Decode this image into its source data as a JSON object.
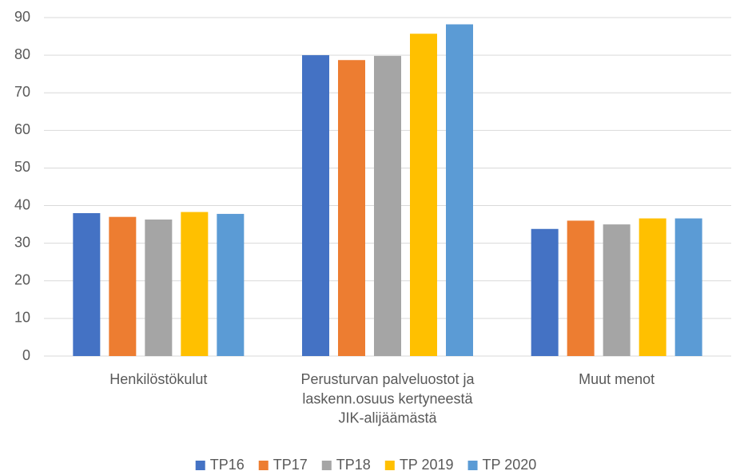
{
  "chart_data": {
    "type": "bar",
    "categories": [
      "Henkilöstökulut",
      "Perusturvan palveluostot ja\nlaskenn.osuus kertyneestä\nJIK-alijäämästä",
      "Muut menot"
    ],
    "series": [
      {
        "name": "TP16",
        "color": "#4472c4",
        "values": [
          38,
          80,
          33.8
        ]
      },
      {
        "name": "TP17",
        "color": "#ed7d31",
        "values": [
          37,
          78.7,
          36
        ]
      },
      {
        "name": "TP18",
        "color": "#a5a5a5",
        "values": [
          36.3,
          79.8,
          35
        ]
      },
      {
        "name": "TP 2019",
        "color": "#ffc000",
        "values": [
          38.3,
          85.7,
          36.6
        ]
      },
      {
        "name": "TP 2020",
        "color": "#5b9bd5",
        "values": [
          37.8,
          88.2,
          36.6
        ]
      }
    ],
    "ylim": [
      0,
      90
    ],
    "yticks": [
      0,
      10,
      20,
      30,
      40,
      50,
      60,
      70,
      80,
      90
    ],
    "grid": true,
    "legend": "bottom"
  }
}
